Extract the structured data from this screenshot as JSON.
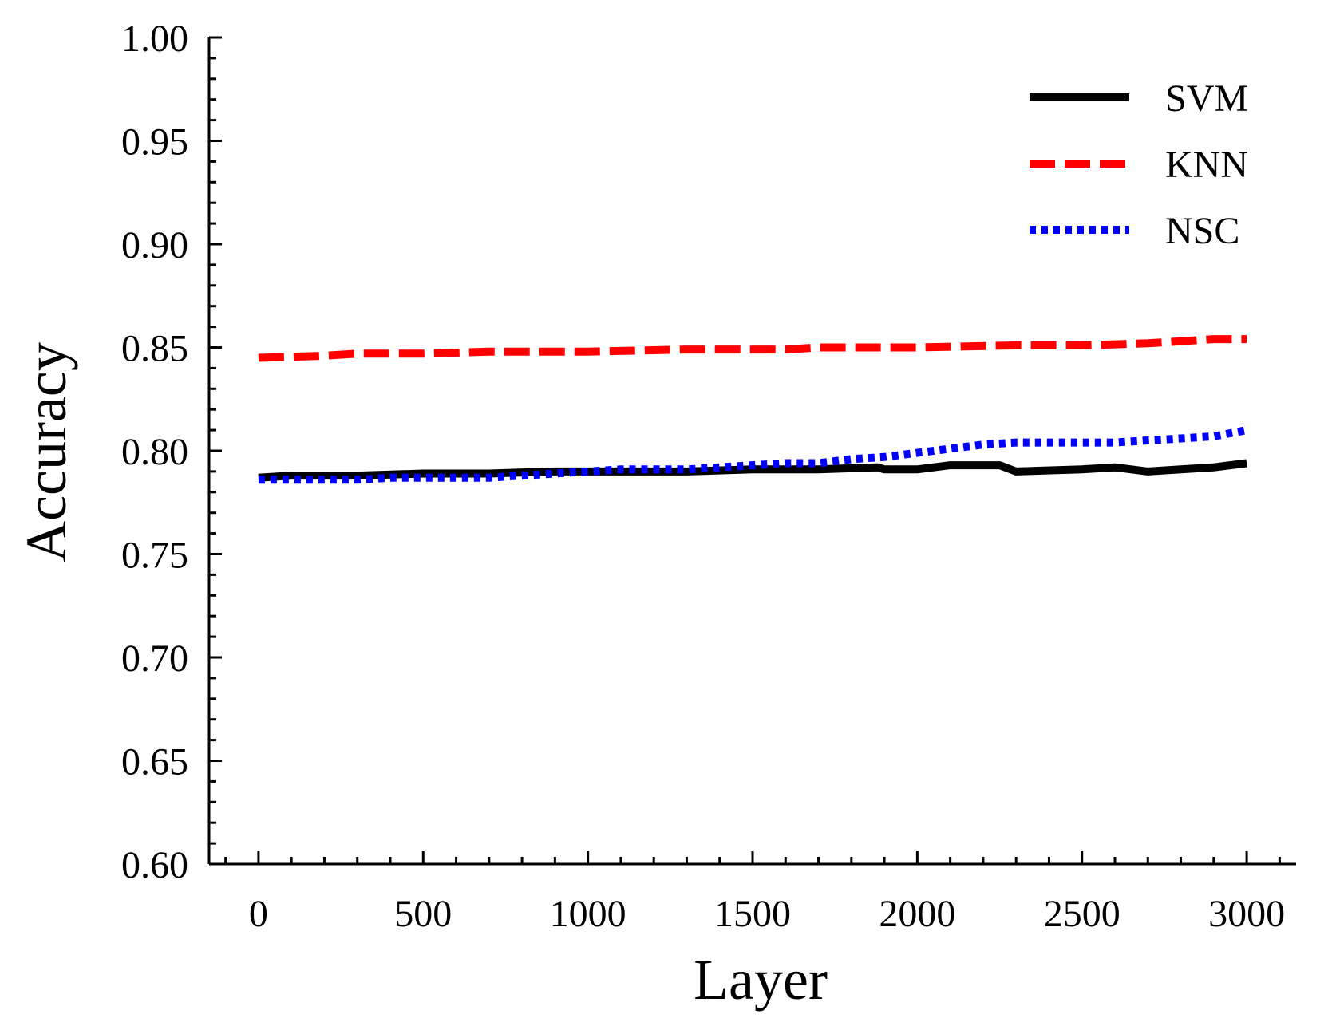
{
  "chart_data": {
    "type": "line",
    "title": "",
    "xlabel": "Layer",
    "ylabel": "Accuracy",
    "xlim": [
      -150,
      3150
    ],
    "ylim": [
      0.6,
      1.0
    ],
    "xticks": [
      0,
      500,
      1000,
      1500,
      2000,
      2500,
      3000
    ],
    "xtick_labels": [
      "0",
      "500",
      "1000",
      "1500",
      "2000",
      "2500",
      "3000"
    ],
    "yticks": [
      0.6,
      0.65,
      0.7,
      0.75,
      0.8,
      0.85,
      0.9,
      0.95,
      1.0
    ],
    "ytick_labels": [
      "0.60",
      "0.65",
      "0.70",
      "0.75",
      "0.80",
      "0.85",
      "0.90",
      "0.95",
      "1.00"
    ],
    "grid": false,
    "legend_position": "top-right",
    "series": [
      {
        "name": "SVM",
        "color": "#000000",
        "style": "solid",
        "x": [
          0,
          100,
          300,
          500,
          700,
          900,
          1100,
          1300,
          1500,
          1700,
          1880,
          1900,
          2000,
          2100,
          2250,
          2300,
          2500,
          2600,
          2700,
          2800,
          2900,
          3000
        ],
        "y": [
          0.787,
          0.788,
          0.788,
          0.789,
          0.789,
          0.79,
          0.79,
          0.79,
          0.791,
          0.791,
          0.792,
          0.791,
          0.791,
          0.793,
          0.793,
          0.79,
          0.791,
          0.792,
          0.79,
          0.791,
          0.792,
          0.794
        ]
      },
      {
        "name": "KNN",
        "color": "#ff0000",
        "style": "dashed",
        "x": [
          0,
          200,
          300,
          500,
          700,
          1000,
          1300,
          1600,
          1700,
          2000,
          2300,
          2500,
          2700,
          2800,
          2900,
          3000
        ],
        "y": [
          0.845,
          0.846,
          0.847,
          0.847,
          0.848,
          0.848,
          0.849,
          0.849,
          0.85,
          0.85,
          0.851,
          0.851,
          0.852,
          0.853,
          0.854,
          0.854
        ]
      },
      {
        "name": "NSC",
        "color": "#0000ff",
        "style": "dotted",
        "x": [
          0,
          100,
          200,
          300,
          400,
          500,
          600,
          700,
          800,
          900,
          1000,
          1100,
          1200,
          1300,
          1400,
          1500,
          1600,
          1700,
          1800,
          1900,
          2000,
          2100,
          2200,
          2300,
          2400,
          2500,
          2600,
          2700,
          2800,
          2900,
          3000
        ],
        "y": [
          0.786,
          0.786,
          0.786,
          0.786,
          0.787,
          0.787,
          0.787,
          0.787,
          0.788,
          0.789,
          0.79,
          0.791,
          0.791,
          0.791,
          0.792,
          0.793,
          0.794,
          0.794,
          0.796,
          0.797,
          0.799,
          0.801,
          0.803,
          0.804,
          0.804,
          0.804,
          0.804,
          0.805,
          0.806,
          0.807,
          0.81
        ]
      }
    ]
  }
}
